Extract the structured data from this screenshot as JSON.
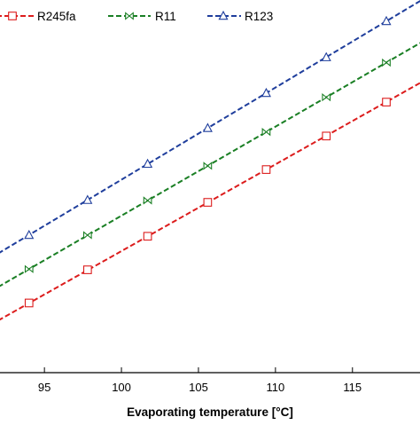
{
  "chart_data": {
    "type": "line",
    "xlabel": "Evaporating temperature [°C]",
    "ylabel": "",
    "title": "",
    "xlim": [
      92,
      119.5
    ],
    "ylim": [
      0,
      1
    ],
    "x_ticks": [
      95,
      100,
      105,
      110,
      115
    ],
    "grid": false,
    "legend_position": "top",
    "series": [
      {
        "name": "R245fa",
        "color": "#dc1c1c",
        "marker": "square",
        "line_style": "dashed",
        "line_x": [
          92,
          119.5
        ],
        "line_y": [
          0.14,
          0.78
        ],
        "x": [
          94,
          97.8,
          101.7,
          105.6,
          109.4,
          113.3,
          117.2
        ],
        "y": [
          0.187,
          0.276,
          0.366,
          0.457,
          0.545,
          0.635,
          0.726
        ]
      },
      {
        "name": "R11",
        "color": "#1a7f24",
        "marker": "bowtie",
        "line_style": "dashed",
        "line_x": [
          92,
          119.5
        ],
        "line_y": [
          0.23,
          0.887
        ],
        "x": [
          94,
          97.8,
          101.7,
          105.6,
          109.4,
          113.3,
          117.2
        ],
        "y": [
          0.278,
          0.369,
          0.462,
          0.555,
          0.646,
          0.739,
          0.832
        ]
      },
      {
        "name": "R123",
        "color": "#1f3e9c",
        "marker": "triangle",
        "line_style": "dashed",
        "line_x": [
          92,
          119.5
        ],
        "line_y": [
          0.32,
          1.0
        ],
        "x": [
          94,
          97.8,
          101.7,
          105.6,
          109.4,
          113.3,
          117.2
        ],
        "y": [
          0.369,
          0.463,
          0.56,
          0.656,
          0.75,
          0.846,
          0.943
        ]
      }
    ]
  }
}
